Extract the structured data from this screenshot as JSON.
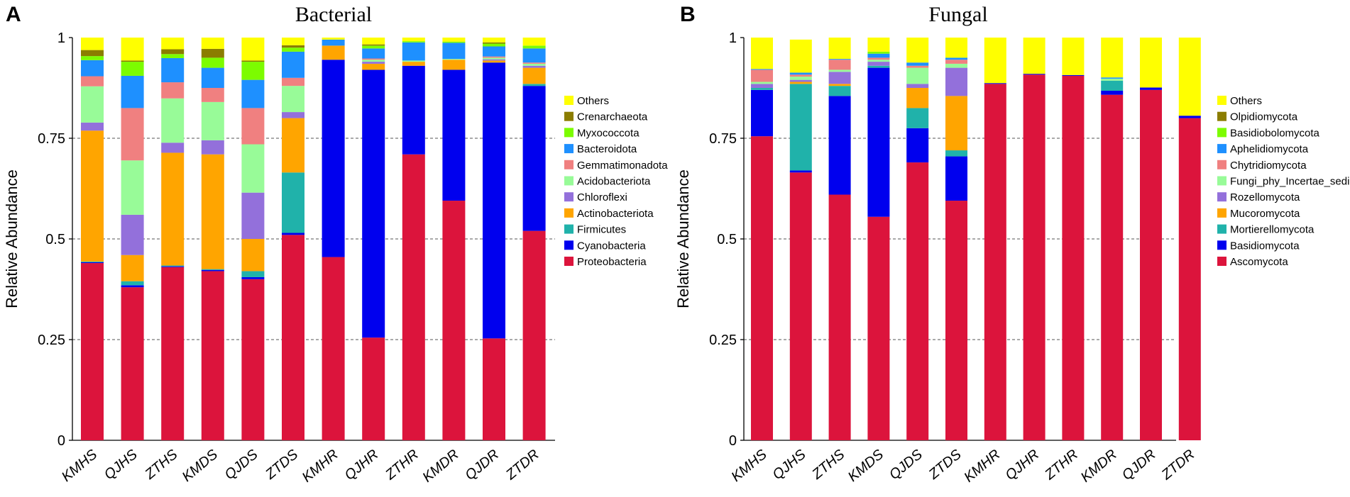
{
  "chart_data": [
    {
      "panel": "A",
      "type": "bar",
      "stacked": true,
      "title": "Bacterial",
      "ylabel": "Relative Abundance",
      "xlabel": "",
      "ylim": [
        0,
        1
      ],
      "yticks": [
        0,
        0.25,
        0.5,
        0.75,
        1
      ],
      "ytick_labels": [
        "0",
        "0.25",
        "0.5",
        "0.75",
        "1"
      ],
      "legend_position": "right",
      "categories": [
        "KMHS",
        "QJHS",
        "ZTHS",
        "KMDS",
        "QJDS",
        "ZTDS",
        "KMHR",
        "QJHR",
        "ZTHR",
        "KMDR",
        "QJDR",
        "ZTDR"
      ],
      "series": [
        {
          "name": "Proteobacteria",
          "color": "#DC143C",
          "values": [
            0.44,
            0.38,
            0.43,
            0.42,
            0.4,
            0.51,
            0.455,
            0.255,
            0.71,
            0.595,
            0.253,
            0.52
          ]
        },
        {
          "name": "Cyanobacteria",
          "color": "#0000EE",
          "values": [
            0.002,
            0.005,
            0.002,
            0.003,
            0.005,
            0.005,
            0.49,
            0.665,
            0.22,
            0.325,
            0.685,
            0.36
          ]
        },
        {
          "name": "Firmicutes",
          "color": "#20B2AA",
          "values": [
            0.002,
            0.01,
            0.002,
            0.002,
            0.015,
            0.15,
            0.0,
            0.0,
            0.0,
            0.0,
            0.0,
            0.005
          ]
        },
        {
          "name": "Actinobacteriota",
          "color": "#FFA500",
          "values": [
            0.325,
            0.065,
            0.28,
            0.285,
            0.08,
            0.135,
            0.035,
            0.015,
            0.01,
            0.025,
            0.005,
            0.04
          ]
        },
        {
          "name": "Chloroflexi",
          "color": "#9370DB",
          "values": [
            0.02,
            0.1,
            0.025,
            0.035,
            0.115,
            0.015,
            0.0,
            0.005,
            0.0,
            0.0,
            0.003,
            0.005
          ]
        },
        {
          "name": "Acidobacteriota",
          "color": "#98FB98",
          "values": [
            0.09,
            0.135,
            0.11,
            0.095,
            0.12,
            0.065,
            0.0,
            0.005,
            0.003,
            0.002,
            0.004,
            0.005
          ]
        },
        {
          "name": "Gemmatimonadota",
          "color": "#F08080",
          "values": [
            0.025,
            0.13,
            0.04,
            0.035,
            0.09,
            0.02,
            0.0,
            0.003,
            0.0,
            0.0,
            0.003,
            0.003
          ]
        },
        {
          "name": "Bacteroidota",
          "color": "#1E90FF",
          "values": [
            0.04,
            0.08,
            0.06,
            0.05,
            0.07,
            0.065,
            0.015,
            0.025,
            0.045,
            0.04,
            0.025,
            0.035
          ]
        },
        {
          "name": "Myxococcota",
          "color": "#7CFC00",
          "values": [
            0.01,
            0.035,
            0.01,
            0.025,
            0.045,
            0.01,
            0.0,
            0.007,
            0.003,
            0.003,
            0.007,
            0.007
          ]
        },
        {
          "name": "Crenarchaeota",
          "color": "#8B7D00",
          "values": [
            0.015,
            0.003,
            0.012,
            0.022,
            0.003,
            0.006,
            0.0,
            0.003,
            0.0,
            0.0,
            0.003,
            0.0
          ]
        },
        {
          "name": "Others",
          "color": "#FFFF00",
          "values": [
            0.031,
            0.057,
            0.029,
            0.028,
            0.057,
            0.019,
            0.005,
            0.017,
            0.009,
            0.01,
            0.012,
            0.02
          ]
        }
      ]
    },
    {
      "panel": "B",
      "type": "bar",
      "stacked": true,
      "title": "Fungal",
      "ylabel": "Relative Abundance",
      "xlabel": "",
      "ylim": [
        0,
        1
      ],
      "yticks": [
        0,
        0.25,
        0.5,
        0.75,
        1
      ],
      "ytick_labels": [
        "0",
        "0.25",
        "0.5",
        "0.75",
        "1"
      ],
      "legend_position": "right",
      "categories": [
        "KMHS",
        "QJHS",
        "ZTHS",
        "KMDS",
        "QJDS",
        "ZTDS",
        "KMHR",
        "QJHR",
        "ZTHR",
        "KMDR",
        "QJDR",
        "ZTDR"
      ],
      "series": [
        {
          "name": "Ascomycota",
          "color": "#DC143C",
          "values": [
            0.755,
            0.665,
            0.61,
            0.555,
            0.69,
            0.595,
            0.885,
            0.908,
            0.905,
            0.858,
            0.87,
            0.8
          ]
        },
        {
          "name": "Basidiomycota",
          "color": "#0000EE",
          "values": [
            0.115,
            0.005,
            0.245,
            0.37,
            0.085,
            0.11,
            0.002,
            0.002,
            0.002,
            0.01,
            0.006,
            0.006
          ]
        },
        {
          "name": "Mortierellomycota",
          "color": "#20B2AA",
          "values": [
            0.005,
            0.215,
            0.025,
            0.005,
            0.05,
            0.015,
            0.0,
            0.0,
            0.0,
            0.025,
            0.0,
            0.0
          ]
        },
        {
          "name": "Mucoromycota",
          "color": "#FFA500",
          "values": [
            0.0,
            0.005,
            0.005,
            0.0,
            0.05,
            0.135,
            0.0,
            0.0,
            0.0,
            0.0,
            0.0,
            0.0
          ]
        },
        {
          "name": "Rozellomycota",
          "color": "#9370DB",
          "values": [
            0.01,
            0.005,
            0.03,
            0.01,
            0.01,
            0.07,
            0.0,
            0.0,
            0.0,
            0.0,
            0.0,
            0.0
          ]
        },
        {
          "name": "Fungi_phy_Incertae_sedis",
          "color": "#98FB98",
          "values": [
            0.005,
            0.008,
            0.005,
            0.005,
            0.04,
            0.01,
            0.0,
            0.0,
            0.0,
            0.005,
            0.0,
            0.0
          ]
        },
        {
          "name": "Chytridiomycota",
          "color": "#F08080",
          "values": [
            0.03,
            0.005,
            0.025,
            0.005,
            0.005,
            0.01,
            0.0,
            0.0,
            0.0,
            0.0,
            0.0,
            0.0
          ]
        },
        {
          "name": "Aphelidiomycota",
          "color": "#1E90FF",
          "values": [
            0.002,
            0.005,
            0.002,
            0.01,
            0.008,
            0.005,
            0.0,
            0.0,
            0.0,
            0.003,
            0.0,
            0.0
          ]
        },
        {
          "name": "Basidiobolomycota",
          "color": "#7CFC00",
          "values": [
            0.0,
            0.0,
            0.0,
            0.005,
            0.0,
            0.0,
            0.0,
            0.0,
            0.0,
            0.0,
            0.0,
            0.0
          ]
        },
        {
          "name": "Olpidiomycota",
          "color": "#8B7D00",
          "values": [
            0.0,
            0.0,
            0.0,
            0.0,
            0.0,
            0.0,
            0.0,
            0.0,
            0.0,
            0.0,
            0.0,
            0.0
          ]
        },
        {
          "name": "Others",
          "color": "#FFFF00",
          "values": [
            0.078,
            0.082,
            0.053,
            0.035,
            0.062,
            0.05,
            0.113,
            0.09,
            0.093,
            0.099,
            0.124,
            0.194
          ]
        }
      ]
    }
  ]
}
